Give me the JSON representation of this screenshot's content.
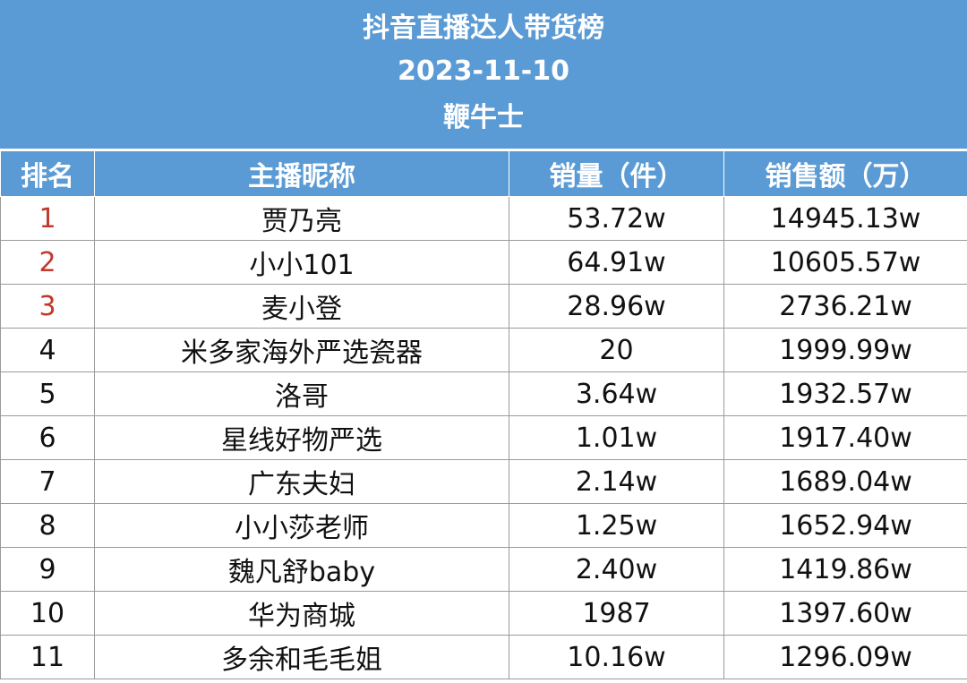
{
  "header": {
    "title": "抖音直播达人带货榜",
    "date": "2023-11-10",
    "source": "鞭牛士"
  },
  "table": {
    "columns": [
      "排名",
      "主播昵称",
      "销量（件）",
      "销售额（万）"
    ],
    "rows": [
      [
        "1",
        "贾乃亮",
        "53.72w",
        "14945.13w"
      ],
      [
        "2",
        "小小101",
        "64.91w",
        "10605.57w"
      ],
      [
        "3",
        "麦小登",
        "28.96w",
        "2736.21w"
      ],
      [
        "4",
        "米多家海外严选瓷器",
        "20",
        "1999.99w"
      ],
      [
        "5",
        "洛哥",
        "3.64w",
        "1932.57w"
      ],
      [
        "6",
        "星线好物严选",
        "1.01w",
        "1917.40w"
      ],
      [
        "7",
        "广东夫妇",
        "2.14w",
        "1689.04w"
      ],
      [
        "8",
        "小小莎老师",
        "1.25w",
        "1652.94w"
      ],
      [
        "9",
        "魏凡舒baby",
        "2.40w",
        "1419.86w"
      ],
      [
        "10",
        "华为商城",
        "1987",
        "1397.60w"
      ],
      [
        "11",
        "多余和毛毛姐",
        "10.16w",
        "1296.09w"
      ]
    ]
  }
}
